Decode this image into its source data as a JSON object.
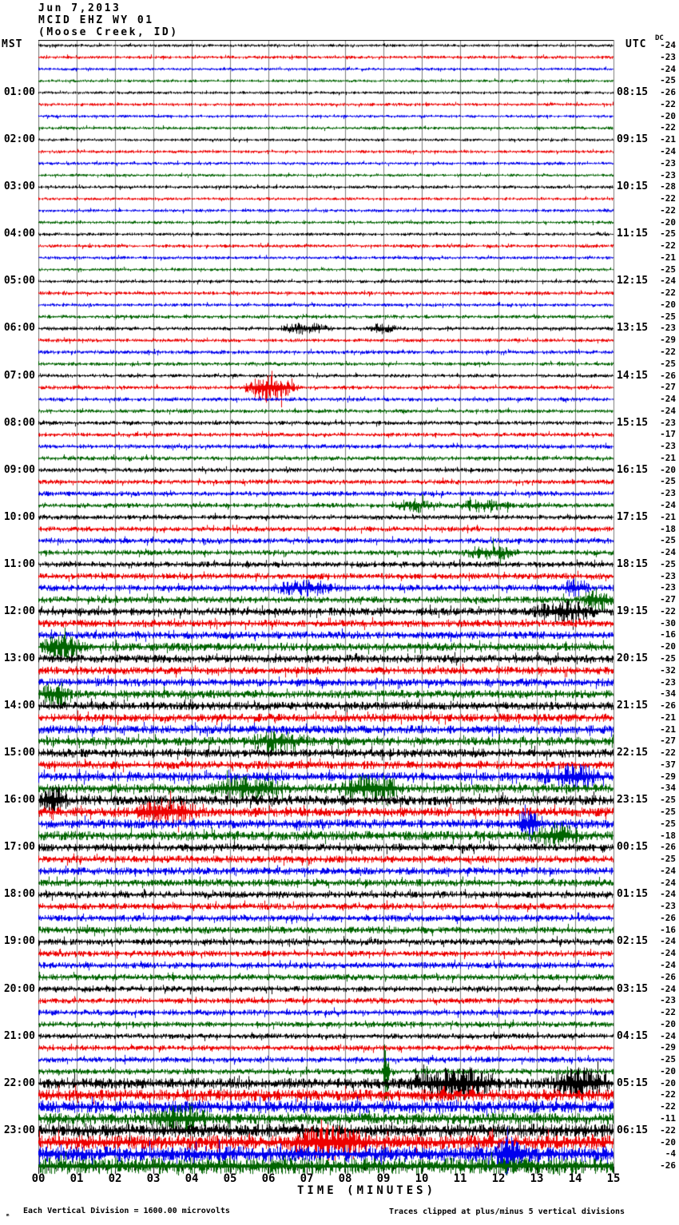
{
  "title": {
    "date": "Jun 7,2013",
    "station": "MCID EHZ WY 01",
    "location": "(Moose Creek, ID)"
  },
  "axes": {
    "left_header": "MST",
    "right_header": "UTC",
    "dc_header": "DC",
    "x_label": "TIME (MINUTES)",
    "x_ticks": [
      "00",
      "01",
      "02",
      "03",
      "04",
      "05",
      "06",
      "07",
      "08",
      "09",
      "10",
      "11",
      "12",
      "13",
      "14",
      "15"
    ]
  },
  "footer": {
    "glyph": "ₘ",
    "scale_note": "Each Vertical Division = 1600.00 microvolts",
    "clip_note": "Traces clipped at plus/minus 5 vertical divisions"
  },
  "colors": {
    "trace_cycle": [
      "#000000",
      "#ee0000",
      "#0000ee",
      "#006400"
    ],
    "grid": "#7d7d7d",
    "axis": "#000000"
  },
  "chart_data": {
    "type": "line",
    "subtype": "seismogram-helicorder",
    "title": "MCID EHZ WY 01 (Moose Creek, ID) Jun 7,2013",
    "xlabel": "TIME (MINUTES)",
    "x_range_minutes": [
      0,
      15
    ],
    "minutes_per_line": 15,
    "lines_per_hour": 4,
    "trace_color_cycle": [
      "black",
      "red",
      "blue",
      "green"
    ],
    "waveform_note": "ambient seismic noise; amp = half-amplitude in px, dc = DC offset label at right",
    "traces": [
      {
        "mst": "",
        "utc": "",
        "dc": -24,
        "amp": 1.2
      },
      {
        "mst": "",
        "utc": "",
        "dc": -23,
        "amp": 1.3
      },
      {
        "mst": "",
        "utc": "",
        "dc": -24,
        "amp": 1.2
      },
      {
        "mst": "",
        "utc": "",
        "dc": -25,
        "amp": 1.2
      },
      {
        "mst": "01:00",
        "utc": "08:15",
        "dc": -26,
        "amp": 1.2
      },
      {
        "mst": "",
        "utc": "",
        "dc": -22,
        "amp": 1.3
      },
      {
        "mst": "",
        "utc": "",
        "dc": -20,
        "amp": 1.2
      },
      {
        "mst": "",
        "utc": "",
        "dc": -22,
        "amp": 1.3
      },
      {
        "mst": "02:00",
        "utc": "09:15",
        "dc": -21,
        "amp": 1.2
      },
      {
        "mst": "",
        "utc": "",
        "dc": -24,
        "amp": 1.3
      },
      {
        "mst": "",
        "utc": "",
        "dc": -23,
        "amp": 1.3
      },
      {
        "mst": "",
        "utc": "",
        "dc": -23,
        "amp": 1.2
      },
      {
        "mst": "03:00",
        "utc": "10:15",
        "dc": -28,
        "amp": 1.3
      },
      {
        "mst": "",
        "utc": "",
        "dc": -22,
        "amp": 1.2
      },
      {
        "mst": "",
        "utc": "",
        "dc": -22,
        "amp": 1.3
      },
      {
        "mst": "",
        "utc": "",
        "dc": -20,
        "amp": 1.3
      },
      {
        "mst": "04:00",
        "utc": "11:15",
        "dc": -25,
        "amp": 1.3
      },
      {
        "mst": "",
        "utc": "",
        "dc": -22,
        "amp": 1.4
      },
      {
        "mst": "",
        "utc": "",
        "dc": -21,
        "amp": 1.3
      },
      {
        "mst": "",
        "utc": "",
        "dc": -25,
        "amp": 1.3
      },
      {
        "mst": "05:00",
        "utc": "12:15",
        "dc": -24,
        "amp": 1.4
      },
      {
        "mst": "",
        "utc": "",
        "dc": -22,
        "amp": 1.5
      },
      {
        "mst": "",
        "utc": "",
        "dc": -20,
        "amp": 1.4
      },
      {
        "mst": "",
        "utc": "",
        "dc": -25,
        "amp": 1.5
      },
      {
        "mst": "06:00",
        "utc": "13:15",
        "dc": -23,
        "amp": 1.5
      },
      {
        "mst": "",
        "utc": "",
        "dc": -29,
        "amp": 1.5
      },
      {
        "mst": "",
        "utc": "",
        "dc": -22,
        "amp": 1.6
      },
      {
        "mst": "",
        "utc": "",
        "dc": -25,
        "amp": 1.5
      },
      {
        "mst": "07:00",
        "utc": "14:15",
        "dc": -26,
        "amp": 1.5
      },
      {
        "mst": "",
        "utc": "",
        "dc": -27,
        "amp": 1.6
      },
      {
        "mst": "",
        "utc": "",
        "dc": -24,
        "amp": 1.6
      },
      {
        "mst": "",
        "utc": "",
        "dc": -24,
        "amp": 1.6
      },
      {
        "mst": "08:00",
        "utc": "15:15",
        "dc": -23,
        "amp": 1.7
      },
      {
        "mst": "",
        "utc": "",
        "dc": -17,
        "amp": 1.7
      },
      {
        "mst": "",
        "utc": "",
        "dc": -23,
        "amp": 1.8
      },
      {
        "mst": "",
        "utc": "",
        "dc": -21,
        "amp": 1.8
      },
      {
        "mst": "09:00",
        "utc": "16:15",
        "dc": -20,
        "amp": 1.8
      },
      {
        "mst": "",
        "utc": "",
        "dc": -25,
        "amp": 1.9
      },
      {
        "mst": "",
        "utc": "",
        "dc": -23,
        "amp": 2.0
      },
      {
        "mst": "",
        "utc": "",
        "dc": -24,
        "amp": 2.0
      },
      {
        "mst": "10:00",
        "utc": "17:15",
        "dc": -21,
        "amp": 2.0
      },
      {
        "mst": "",
        "utc": "",
        "dc": -18,
        "amp": 2.1
      },
      {
        "mst": "",
        "utc": "",
        "dc": -25,
        "amp": 2.2
      },
      {
        "mst": "",
        "utc": "",
        "dc": -24,
        "amp": 2.2
      },
      {
        "mst": "11:00",
        "utc": "18:15",
        "dc": -25,
        "amp": 2.4
      },
      {
        "mst": "",
        "utc": "",
        "dc": -23,
        "amp": 2.5
      },
      {
        "mst": "",
        "utc": "",
        "dc": -23,
        "amp": 2.6
      },
      {
        "mst": "",
        "utc": "",
        "dc": -27,
        "amp": 2.8
      },
      {
        "mst": "12:00",
        "utc": "19:15",
        "dc": -22,
        "amp": 3.2
      },
      {
        "mst": "",
        "utc": "",
        "dc": -30,
        "amp": 3.0
      },
      {
        "mst": "",
        "utc": "",
        "dc": -16,
        "amp": 3.1
      },
      {
        "mst": "",
        "utc": "",
        "dc": -20,
        "amp": 3.3
      },
      {
        "mst": "13:00",
        "utc": "20:15",
        "dc": -25,
        "amp": 3.3
      },
      {
        "mst": "",
        "utc": "",
        "dc": -32,
        "amp": 3.2
      },
      {
        "mst": "",
        "utc": "",
        "dc": -23,
        "amp": 3.3
      },
      {
        "mst": "",
        "utc": "",
        "dc": -34,
        "amp": 3.4
      },
      {
        "mst": "14:00",
        "utc": "21:15",
        "dc": -26,
        "amp": 3.4
      },
      {
        "mst": "",
        "utc": "",
        "dc": -21,
        "amp": 3.3
      },
      {
        "mst": "",
        "utc": "",
        "dc": -21,
        "amp": 3.4
      },
      {
        "mst": "",
        "utc": "",
        "dc": -27,
        "amp": 3.5
      },
      {
        "mst": "15:00",
        "utc": "22:15",
        "dc": -22,
        "amp": 3.5
      },
      {
        "mst": "",
        "utc": "",
        "dc": -37,
        "amp": 3.4
      },
      {
        "mst": "",
        "utc": "",
        "dc": -29,
        "amp": 3.6
      },
      {
        "mst": "",
        "utc": "",
        "dc": -34,
        "amp": 3.7
      },
      {
        "mst": "16:00",
        "utc": "23:15",
        "dc": -25,
        "amp": 4.0
      },
      {
        "mst": "",
        "utc": "",
        "dc": -25,
        "amp": 3.9
      },
      {
        "mst": "",
        "utc": "",
        "dc": -25,
        "amp": 3.8
      },
      {
        "mst": "",
        "utc": "",
        "dc": -18,
        "amp": 3.8
      },
      {
        "mst": "17:00",
        "utc": "00:15",
        "dc": -26,
        "amp": 3.2
      },
      {
        "mst": "",
        "utc": "",
        "dc": -25,
        "amp": 3.0
      },
      {
        "mst": "",
        "utc": "",
        "dc": -24,
        "amp": 3.0
      },
      {
        "mst": "",
        "utc": "",
        "dc": -24,
        "amp": 3.0
      },
      {
        "mst": "18:00",
        "utc": "01:15",
        "dc": -24,
        "amp": 2.8
      },
      {
        "mst": "",
        "utc": "",
        "dc": -23,
        "amp": 2.7
      },
      {
        "mst": "",
        "utc": "",
        "dc": -26,
        "amp": 2.7
      },
      {
        "mst": "",
        "utc": "",
        "dc": -16,
        "amp": 2.8
      },
      {
        "mst": "19:00",
        "utc": "02:15",
        "dc": -24,
        "amp": 2.6
      },
      {
        "mst": "",
        "utc": "",
        "dc": -24,
        "amp": 2.5
      },
      {
        "mst": "",
        "utc": "",
        "dc": -24,
        "amp": 2.6
      },
      {
        "mst": "",
        "utc": "",
        "dc": -26,
        "amp": 2.6
      },
      {
        "mst": "20:00",
        "utc": "03:15",
        "dc": -24,
        "amp": 2.4
      },
      {
        "mst": "",
        "utc": "",
        "dc": -23,
        "amp": 2.3
      },
      {
        "mst": "",
        "utc": "",
        "dc": -22,
        "amp": 2.4
      },
      {
        "mst": "",
        "utc": "",
        "dc": -20,
        "amp": 2.4
      },
      {
        "mst": "21:00",
        "utc": "04:15",
        "dc": -24,
        "amp": 2.2
      },
      {
        "mst": "",
        "utc": "",
        "dc": -29,
        "amp": 2.2
      },
      {
        "mst": "",
        "utc": "",
        "dc": -25,
        "amp": 2.3
      },
      {
        "mst": "",
        "utc": "",
        "dc": -20,
        "amp": 2.4
      },
      {
        "mst": "22:00",
        "utc": "05:15",
        "dc": -20,
        "amp": 4.4
      },
      {
        "mst": "",
        "utc": "",
        "dc": -22,
        "amp": 4.8
      },
      {
        "mst": "",
        "utc": "",
        "dc": -22,
        "amp": 5.0
      },
      {
        "mst": "",
        "utc": "",
        "dc": -11,
        "amp": 4.6
      },
      {
        "mst": "23:00",
        "utc": "06:15",
        "dc": -22,
        "amp": 5.4
      },
      {
        "mst": "",
        "utc": "",
        "dc": -20,
        "amp": 6.0
      },
      {
        "mst": "",
        "utc": "",
        "dc": -4,
        "amp": 6.4
      },
      {
        "mst": "",
        "utc": "",
        "dc": -26,
        "amp": 6.6
      }
    ],
    "events": [
      {
        "i": 24,
        "t0": 6.2,
        "t1": 7.7,
        "a": 2.5
      },
      {
        "i": 24,
        "t0": 8.5,
        "t1": 9.4,
        "a": 2.0
      },
      {
        "i": 29,
        "t0": 5.3,
        "t1": 6.8,
        "a": 6.0
      },
      {
        "i": 39,
        "t0": 9.2,
        "t1": 10.4,
        "a": 2.0
      },
      {
        "i": 39,
        "t0": 10.9,
        "t1": 12.4,
        "a": 2.0
      },
      {
        "i": 43,
        "t0": 11.0,
        "t1": 12.6,
        "a": 2.0
      },
      {
        "i": 46,
        "t0": 6.0,
        "t1": 8.0,
        "a": 1.7
      },
      {
        "i": 46,
        "t0": 13.6,
        "t1": 14.4,
        "a": 2.2
      },
      {
        "i": 47,
        "t0": 14.1,
        "t1": 15.0,
        "a": 2.6
      },
      {
        "i": 48,
        "t0": 12.8,
        "t1": 14.6,
        "a": 2.0
      },
      {
        "i": 51,
        "t0": 0.0,
        "t1": 1.3,
        "a": 2.4
      },
      {
        "i": 55,
        "t0": 0.0,
        "t1": 0.9,
        "a": 2.3
      },
      {
        "i": 59,
        "t0": 5.4,
        "t1": 7.2,
        "a": 1.7
      },
      {
        "i": 62,
        "t0": 12.9,
        "t1": 14.9,
        "a": 2.0
      },
      {
        "i": 63,
        "t0": 4.4,
        "t1": 6.6,
        "a": 1.9
      },
      {
        "i": 63,
        "t0": 7.7,
        "t1": 9.6,
        "a": 2.2
      },
      {
        "i": 64,
        "t0": 0.0,
        "t1": 0.8,
        "a": 2.6
      },
      {
        "i": 65,
        "t0": 2.4,
        "t1": 4.3,
        "a": 2.0
      },
      {
        "i": 66,
        "t0": 12.4,
        "t1": 13.1,
        "a": 2.4
      },
      {
        "i": 67,
        "t0": 12.9,
        "t1": 14.2,
        "a": 2.0
      },
      {
        "i": 87,
        "t0": 8.95,
        "t1": 9.15,
        "a": 12.0
      },
      {
        "i": 88,
        "t0": 9.6,
        "t1": 12.2,
        "a": 2.2
      },
      {
        "i": 88,
        "t0": 13.2,
        "t1": 15.0,
        "a": 2.0
      },
      {
        "i": 91,
        "t0": 2.9,
        "t1": 4.6,
        "a": 1.6
      },
      {
        "i": 93,
        "t0": 6.5,
        "t1": 8.7,
        "a": 1.5
      },
      {
        "i": 94,
        "t0": 11.9,
        "t1": 12.7,
        "a": 2.0
      }
    ]
  }
}
